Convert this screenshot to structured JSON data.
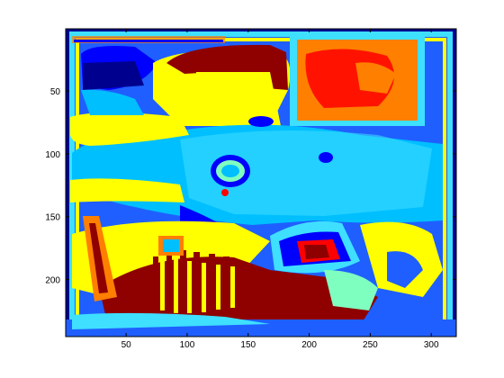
{
  "chart_data": {
    "type": "heatmap",
    "title": "",
    "xlabel": "",
    "ylabel": "",
    "xlim": [
      0.5,
      320.5
    ],
    "ylim": [
      0.5,
      245.5
    ],
    "y_axis_direction": "reverse",
    "x_ticks": [
      {
        "value": 50,
        "label": "50"
      },
      {
        "value": 100,
        "label": "100"
      },
      {
        "value": 150,
        "label": "150"
      },
      {
        "value": 200,
        "label": "200"
      },
      {
        "value": 250,
        "label": "250"
      },
      {
        "value": 300,
        "label": "300"
      }
    ],
    "y_ticks": [
      {
        "value": 50,
        "label": "50"
      },
      {
        "value": 100,
        "label": "100"
      },
      {
        "value": 150,
        "label": "150"
      },
      {
        "value": 200,
        "label": "200"
      }
    ],
    "colormap": "jet",
    "colors": {
      "dark_blue": "#00008f",
      "blue": "#0000ff",
      "mid_blue": "#1f5fff",
      "light_blue": "#00bfff",
      "cyan": "#3fdfff",
      "green_cyan": "#7fffbf",
      "yellow": "#ffff00",
      "orange": "#ff7f00",
      "red": "#ff0000",
      "dark_red": "#8f0000"
    },
    "regions": [
      {
        "color": "light_blue",
        "x": [
          30,
          250
        ],
        "y": [
          80,
          150
        ]
      },
      {
        "color": "yellow",
        "x": [
          85,
          170
        ],
        "y": [
          18,
          75
        ]
      },
      {
        "color": "dark_red",
        "x": [
          100,
          200
        ],
        "y": [
          15,
          45
        ]
      },
      {
        "color": "orange",
        "x": [
          190,
          300
        ],
        "y": [
          10,
          70
        ]
      },
      {
        "color": "dark_red",
        "x": [
          10,
          300
        ],
        "y": [
          200,
          240
        ]
      },
      {
        "color": "yellow",
        "x": [
          30,
          130
        ],
        "y": [
          165,
          240
        ]
      },
      {
        "color": "blue",
        "x": [
          170,
          240
        ],
        "y": [
          170,
          205
        ]
      }
    ]
  }
}
